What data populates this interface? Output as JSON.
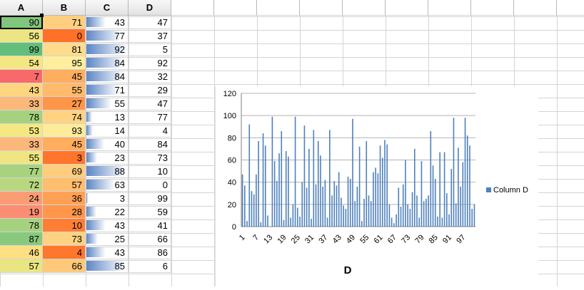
{
  "columns": [
    "A",
    "B",
    "C",
    "D"
  ],
  "rows": [
    [
      90,
      71,
      43,
      47
    ],
    [
      56,
      0,
      77,
      37
    ],
    [
      99,
      81,
      92,
      5
    ],
    [
      54,
      95,
      84,
      92
    ],
    [
      7,
      45,
      84,
      32
    ],
    [
      43,
      55,
      71,
      29
    ],
    [
      33,
      27,
      55,
      47
    ],
    [
      78,
      74,
      13,
      77
    ],
    [
      53,
      93,
      14,
      4
    ],
    [
      33,
      45,
      40,
      84
    ],
    [
      55,
      3,
      23,
      73
    ],
    [
      77,
      69,
      88,
      10
    ],
    [
      72,
      57,
      63,
      0
    ],
    [
      24,
      36,
      3,
      99
    ],
    [
      19,
      28,
      22,
      59
    ],
    [
      78,
      10,
      43,
      41
    ],
    [
      87,
      73,
      25,
      66
    ],
    [
      46,
      4,
      43,
      86
    ],
    [
      57,
      66,
      85,
      6
    ]
  ],
  "colors": {
    "a_high": "#63be7b",
    "a_mid": "#ffeb84",
    "a_low": "#f8696b",
    "b_high": "#ffef9c",
    "b_low": "#ff7128",
    "databar": "#5b85c5",
    "series": "#4f81bd"
  },
  "chart_data": {
    "type": "bar",
    "title": "D",
    "legend": "Column D",
    "legend_position": "right",
    "ylim": [
      0,
      120
    ],
    "yticks": [
      0,
      20,
      40,
      60,
      80,
      100,
      120
    ],
    "xtick_labels": [
      "1",
      "7",
      "13",
      "19",
      "25",
      "31",
      "37",
      "43",
      "49",
      "55",
      "61",
      "67",
      "73",
      "79",
      "85",
      "91",
      "97"
    ],
    "grid": true,
    "values": [
      47,
      37,
      5,
      92,
      32,
      29,
      47,
      77,
      4,
      84,
      73,
      10,
      0,
      99,
      59,
      41,
      66,
      86,
      6,
      68,
      63,
      8,
      20,
      99,
      17,
      9,
      40,
      91,
      35,
      70,
      7,
      87,
      38,
      77,
      64,
      36,
      42,
      8,
      87,
      28,
      41,
      37,
      49,
      26,
      19,
      16,
      45,
      43,
      97,
      23,
      36,
      72,
      5,
      25,
      77,
      28,
      23,
      49,
      53,
      48,
      73,
      62,
      78,
      74,
      20,
      8,
      3,
      11,
      35,
      18,
      38,
      60,
      20,
      16,
      31,
      70,
      28,
      8,
      59,
      23,
      25,
      28,
      86,
      55,
      43,
      9,
      67,
      8,
      67,
      30,
      11,
      52,
      98,
      21,
      71,
      36,
      58,
      98,
      82,
      73,
      16,
      20
    ]
  }
}
